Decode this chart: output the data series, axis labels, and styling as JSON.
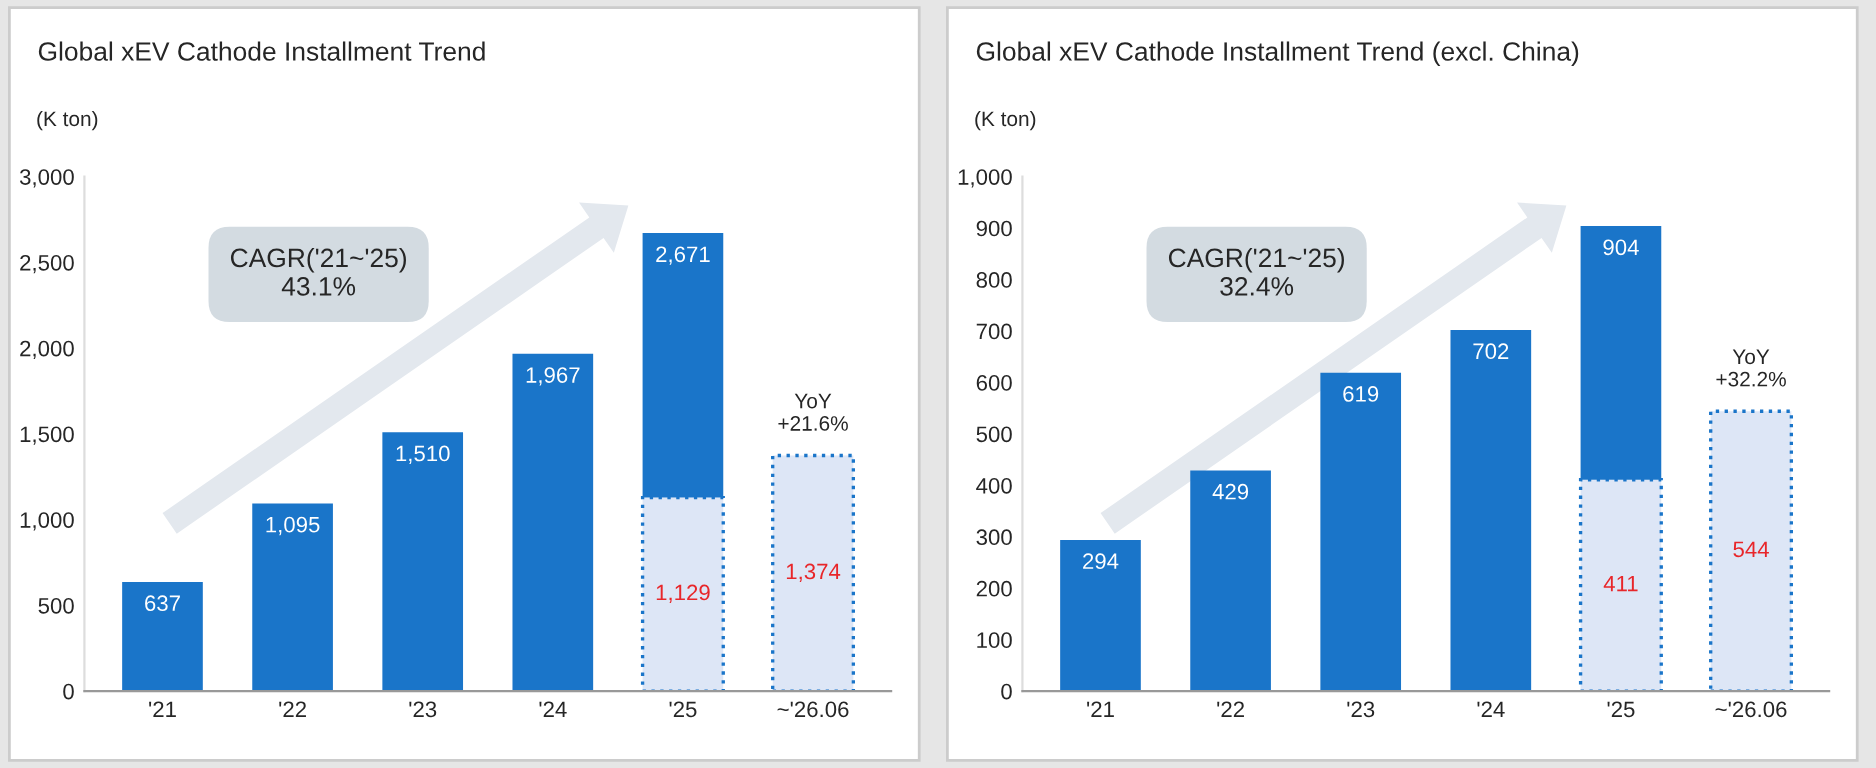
{
  "chart_data": [
    {
      "type": "bar",
      "title": "Global xEV Cathode Installment Trend",
      "ylabel": "(K ton)",
      "stacked": true,
      "categories": [
        "'21",
        "'22",
        "'23",
        "'24",
        "'25",
        "~'26.06"
      ],
      "series": [
        {
          "colors": [
            "#1a75c9",
            "#1a75c9",
            "#1a75c9",
            "#1a75c9",
            "#dde6f6",
            "#dde6f6"
          ],
          "values": [
            637,
            1095,
            1510,
            1967,
            1129,
            1374
          ],
          "value_labels": [
            "637",
            "1,095",
            "1,510",
            "1,967",
            "1,129",
            "1,374"
          ]
        },
        {
          "color": "#1a75c9",
          "values": [
            null,
            null,
            null,
            null,
            1542,
            null
          ],
          "value_labels": [
            null,
            null,
            null,
            null,
            null,
            null
          ]
        }
      ],
      "totals": [
        null,
        null,
        null,
        null,
        "2,671",
        null
      ],
      "ylim": [
        0,
        3000
      ],
      "yticks": [
        0,
        {
          "value": 500,
          "label": "500"
        },
        {
          "value": 1000,
          "label": "1,000"
        },
        {
          "value": 1500,
          "label": "1,500"
        },
        {
          "value": 2000,
          "label": "2,000"
        },
        {
          "value": 2500,
          "label": "2,500"
        },
        {
          "value": 3000,
          "label": "3,000"
        }
      ],
      "grid": false,
      "legend": false,
      "annotations": [
        "CAGR('21~'25)\n43.1%",
        {
          "text": "YoY\n+21.6%",
          "x": "~'26.06",
          "y": 1374
        }
      ]
    },
    {
      "type": "bar",
      "title": "Global xEV Cathode Installment Trend (excl. China)",
      "ylabel": "(K ton)",
      "stacked": true,
      "categories": [
        "'21",
        "'22",
        "'23",
        "'24",
        "'25",
        "~'26.06"
      ],
      "series": [
        {
          "colors": [
            "#1a75c9",
            "#1a75c9",
            "#1a75c9",
            "#1a75c9",
            "#dde6f6",
            "#dde6f6"
          ],
          "values": [
            294,
            429,
            619,
            702,
            411,
            544
          ],
          "value_labels": [
            "294",
            "429",
            "619",
            "702",
            "411",
            "544"
          ]
        },
        {
          "color": "#1a75c9",
          "values": [
            null,
            null,
            null,
            null,
            493,
            null
          ],
          "value_labels": [
            null,
            null,
            null,
            null,
            null,
            null
          ]
        }
      ],
      "totals": [
        null,
        null,
        null,
        null,
        "904",
        null
      ],
      "ylim": [
        0,
        1000
      ],
      "yticks": [
        0,
        100,
        200,
        300,
        400,
        500,
        600,
        700,
        800,
        900,
        {
          "value": 1000,
          "label": "1,000"
        }
      ],
      "grid": false,
      "legend": false,
      "annotations": [
        "CAGR('21~'25)\n32.4%",
        {
          "text": "YoY\n+32.2%",
          "x": "~'26.06",
          "y": 544
        }
      ]
    }
  ]
}
